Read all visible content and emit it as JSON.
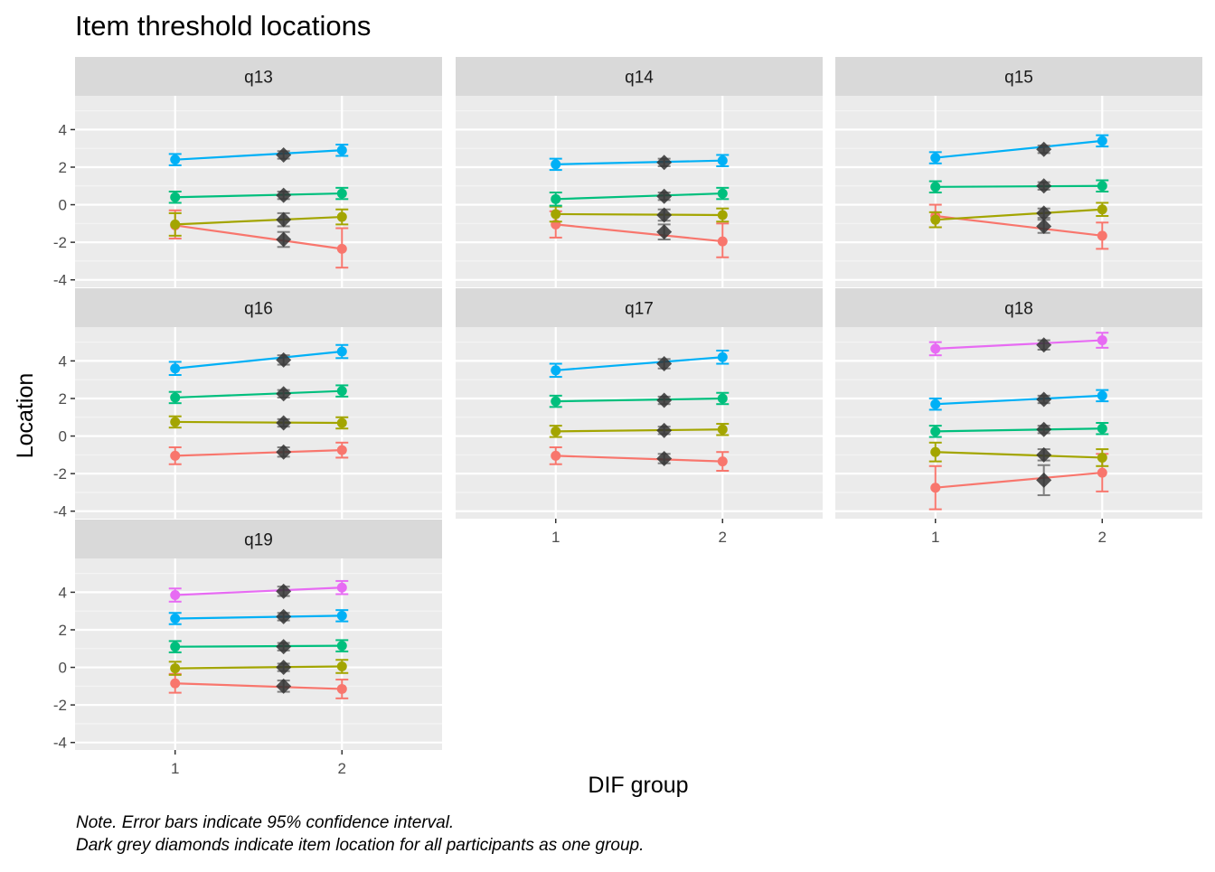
{
  "chart_data": {
    "type": "line",
    "title": "Item threshold locations",
    "xlabel": "DIF group",
    "ylabel": "Location",
    "x_ticks": [
      "1",
      "2"
    ],
    "xlim": [
      0.4,
      2.6
    ],
    "y_ticks": [
      4,
      2,
      0,
      -2,
      -4
    ],
    "ylim": [
      -4.4,
      5.8
    ],
    "colors": {
      "threshold_1": "#F8766D",
      "threshold_2": "#A3A500",
      "threshold_3": "#00BF7D",
      "threshold_4": "#00B0F6",
      "threshold_5": "#E76BF3",
      "all_participants": "#333333"
    },
    "overall_marker_x": 1.65,
    "panels": [
      {
        "label": "q13",
        "thresholds": [
          {
            "g1": [
              -1.1,
              -1.8,
              -0.3
            ],
            "g2": [
              -2.35,
              -3.35,
              -1.25
            ],
            "all": [
              -1.85,
              -2.25,
              -1.45
            ]
          },
          {
            "g1": [
              -1.05,
              -1.65,
              -0.45
            ],
            "g2": [
              -0.65,
              -1.05,
              -0.25
            ],
            "all": [
              -0.8,
              -1.15,
              -0.45
            ]
          },
          {
            "g1": [
              0.4,
              0.1,
              0.7
            ],
            "g2": [
              0.6,
              0.3,
              0.9
            ],
            "all": [
              0.5,
              0.3,
              0.7
            ]
          },
          {
            "g1": [
              2.4,
              2.1,
              2.7
            ],
            "g2": [
              2.9,
              2.6,
              3.2
            ],
            "all": [
              2.65,
              2.45,
              2.85
            ]
          }
        ]
      },
      {
        "label": "q14",
        "thresholds": [
          {
            "g1": [
              -1.05,
              -1.75,
              -0.35
            ],
            "g2": [
              -1.95,
              -2.8,
              -1.0
            ],
            "all": [
              -1.45,
              -1.85,
              -1.05
            ]
          },
          {
            "g1": [
              -0.5,
              -0.9,
              -0.1
            ],
            "g2": [
              -0.55,
              -0.9,
              -0.2
            ],
            "all": [
              -0.55,
              -0.85,
              -0.25
            ]
          },
          {
            "g1": [
              0.3,
              -0.05,
              0.65
            ],
            "g2": [
              0.6,
              0.3,
              0.9
            ],
            "all": [
              0.45,
              0.25,
              0.65
            ]
          },
          {
            "g1": [
              2.15,
              1.85,
              2.45
            ],
            "g2": [
              2.35,
              2.05,
              2.65
            ],
            "all": [
              2.25,
              2.05,
              2.45
            ]
          }
        ]
      },
      {
        "label": "q15",
        "thresholds": [
          {
            "g1": [
              -0.6,
              -1.2,
              0.0
            ],
            "g2": [
              -1.65,
              -2.35,
              -0.95
            ],
            "all": [
              -1.15,
              -1.5,
              -0.8
            ]
          },
          {
            "g1": [
              -0.8,
              -1.2,
              -0.4
            ],
            "g2": [
              -0.25,
              -0.6,
              0.1
            ],
            "all": [
              -0.45,
              -0.7,
              -0.2
            ]
          },
          {
            "g1": [
              0.95,
              0.65,
              1.25
            ],
            "g2": [
              1.0,
              0.7,
              1.3
            ],
            "all": [
              1.0,
              0.8,
              1.2
            ]
          },
          {
            "g1": [
              2.5,
              2.2,
              2.8
            ],
            "g2": [
              3.4,
              3.1,
              3.7
            ],
            "all": [
              2.95,
              2.75,
              3.15
            ]
          }
        ]
      },
      {
        "label": "q16",
        "thresholds": [
          {
            "g1": [
              -1.05,
              -1.5,
              -0.6
            ],
            "g2": [
              -0.75,
              -1.15,
              -0.35
            ],
            "all": [
              -0.85,
              -1.1,
              -0.6
            ]
          },
          {
            "g1": [
              0.75,
              0.45,
              1.05
            ],
            "g2": [
              0.7,
              0.4,
              1.0
            ],
            "all": [
              0.7,
              0.5,
              0.9
            ]
          },
          {
            "g1": [
              2.05,
              1.75,
              2.35
            ],
            "g2": [
              2.4,
              2.1,
              2.7
            ],
            "all": [
              2.25,
              2.05,
              2.45
            ]
          },
          {
            "g1": [
              3.6,
              3.25,
              3.95
            ],
            "g2": [
              4.5,
              4.15,
              4.85
            ],
            "all": [
              4.05,
              3.8,
              4.3
            ]
          }
        ]
      },
      {
        "label": "q17",
        "thresholds": [
          {
            "g1": [
              -1.05,
              -1.5,
              -0.6
            ],
            "g2": [
              -1.35,
              -1.85,
              -0.85
            ],
            "all": [
              -1.2,
              -1.45,
              -0.95
            ]
          },
          {
            "g1": [
              0.25,
              -0.05,
              0.55
            ],
            "g2": [
              0.35,
              0.05,
              0.65
            ],
            "all": [
              0.3,
              0.1,
              0.5
            ]
          },
          {
            "g1": [
              1.85,
              1.55,
              2.15
            ],
            "g2": [
              2.0,
              1.7,
              2.3
            ],
            "all": [
              1.9,
              1.7,
              2.1
            ]
          },
          {
            "g1": [
              3.5,
              3.15,
              3.85
            ],
            "g2": [
              4.2,
              3.85,
              4.55
            ],
            "all": [
              3.85,
              3.6,
              4.1
            ]
          }
        ]
      },
      {
        "label": "q18",
        "thresholds": [
          {
            "g1": [
              -2.75,
              -3.9,
              -1.6
            ],
            "g2": [
              -1.95,
              -2.95,
              -0.95
            ],
            "all": [
              -2.35,
              -3.15,
              -1.55
            ]
          },
          {
            "g1": [
              -0.85,
              -1.35,
              -0.35
            ],
            "g2": [
              -1.15,
              -1.6,
              -0.7
            ],
            "all": [
              -1.0,
              -1.3,
              -0.7
            ]
          },
          {
            "g1": [
              0.25,
              -0.05,
              0.55
            ],
            "g2": [
              0.4,
              0.1,
              0.7
            ],
            "all": [
              0.35,
              0.15,
              0.55
            ]
          },
          {
            "g1": [
              1.7,
              1.4,
              2.0
            ],
            "g2": [
              2.15,
              1.85,
              2.45
            ],
            "all": [
              1.95,
              1.75,
              2.15
            ]
          },
          {
            "g1": [
              4.65,
              4.3,
              5.0
            ],
            "g2": [
              5.1,
              4.7,
              5.5
            ],
            "all": [
              4.85,
              4.6,
              5.1
            ]
          }
        ]
      },
      {
        "label": "q19",
        "thresholds": [
          {
            "g1": [
              -0.85,
              -1.35,
              -0.35
            ],
            "g2": [
              -1.15,
              -1.65,
              -0.65
            ],
            "all": [
              -1.0,
              -1.3,
              -0.7
            ]
          },
          {
            "g1": [
              -0.05,
              -0.4,
              0.3
            ],
            "g2": [
              0.05,
              -0.3,
              0.4
            ],
            "all": [
              0.0,
              -0.2,
              0.2
            ]
          },
          {
            "g1": [
              1.1,
              0.8,
              1.4
            ],
            "g2": [
              1.15,
              0.85,
              1.45
            ],
            "all": [
              1.1,
              0.9,
              1.3
            ]
          },
          {
            "g1": [
              2.6,
              2.3,
              2.9
            ],
            "g2": [
              2.75,
              2.45,
              3.05
            ],
            "all": [
              2.7,
              2.5,
              2.9
            ]
          },
          {
            "g1": [
              3.85,
              3.5,
              4.2
            ],
            "g2": [
              4.25,
              3.9,
              4.6
            ],
            "all": [
              4.05,
              3.8,
              4.3
            ]
          }
        ]
      }
    ],
    "notes": [
      "Note. Error bars indicate 95% confidence interval.",
      "Dark grey diamonds indicate item location for all participants as one group."
    ]
  }
}
